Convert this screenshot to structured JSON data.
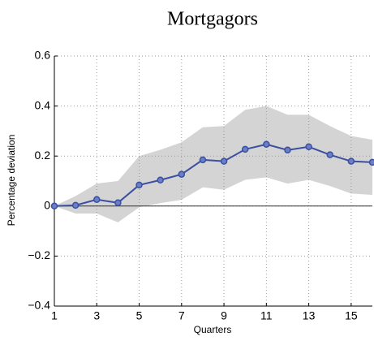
{
  "chart_data": {
    "type": "line",
    "title": "Mortgagors",
    "x_label": "Quarters",
    "y_label": "Percentage deviation",
    "x": [
      1,
      2,
      3,
      4,
      5,
      6,
      7,
      8,
      9,
      10,
      11,
      12,
      13,
      14,
      15,
      16
    ],
    "series": [
      {
        "color": "#3a4fa0",
        "values": [
          0,
          0.003,
          0.026,
          0.013,
          0.084,
          0.104,
          0.127,
          0.185,
          0.179,
          0.227,
          0.247,
          0.224,
          0.237,
          0.205,
          0.179,
          0.175
        ]
      }
    ],
    "band": {
      "color": "#d4d4d4",
      "upper": [
        0,
        0.04,
        0.09,
        0.1,
        0.2,
        0.225,
        0.255,
        0.315,
        0.32,
        0.385,
        0.4,
        0.365,
        0.365,
        0.32,
        0.28,
        0.265
      ],
      "lower": [
        0,
        -0.03,
        -0.03,
        -0.065,
        -0.005,
        0.012,
        0.025,
        0.075,
        0.065,
        0.105,
        0.115,
        0.09,
        0.105,
        0.08,
        0.05,
        0.045
      ]
    },
    "xlim": [
      1,
      16
    ],
    "ylim": [
      -0.4,
      0.6
    ],
    "xticks": [
      1,
      3,
      5,
      7,
      9,
      11,
      13,
      15
    ],
    "yticks": [
      {
        "value": -0.4,
        "label": "−0.4"
      },
      {
        "value": -0.2,
        "label": "−0.2"
      },
      0,
      0.2,
      0.4,
      0.6
    ],
    "grid": true
  }
}
